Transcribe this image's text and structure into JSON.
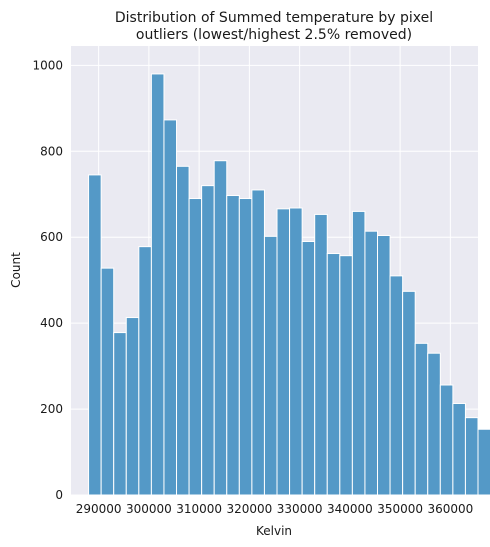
{
  "chart_data": {
    "type": "bar",
    "title_lines": [
      "Distribution of Summed temperature by pixel",
      "outliers (lowest/highest 2.5% removed)"
    ],
    "xlabel": "Kelvin",
    "ylabel": "Count",
    "xlim": [
      284500,
      365500
    ],
    "ylim": [
      0,
      1045
    ],
    "x_ticks": [
      290000,
      300000,
      310000,
      320000,
      330000,
      340000,
      350000,
      360000
    ],
    "x_tick_labels": [
      "290000",
      "300000",
      "310000",
      "320000",
      "330000",
      "340000",
      "350000",
      "360000"
    ],
    "y_ticks": [
      0,
      200,
      400,
      600,
      800,
      1000
    ],
    "y_tick_labels": [
      "0",
      "200",
      "400",
      "600",
      "800",
      "1000"
    ],
    "bin_start": 288000,
    "bin_width": 2500,
    "values": [
      745,
      528,
      378,
      413,
      578,
      980,
      873,
      765,
      690,
      720,
      778,
      697,
      690,
      710,
      602,
      666,
      668,
      590,
      653,
      562,
      557,
      660,
      614,
      604,
      510,
      474,
      353,
      330,
      256,
      213,
      180,
      153
    ],
    "bar_color": "#5499c7",
    "background_color": "#eaeaf2",
    "grid": true
  }
}
